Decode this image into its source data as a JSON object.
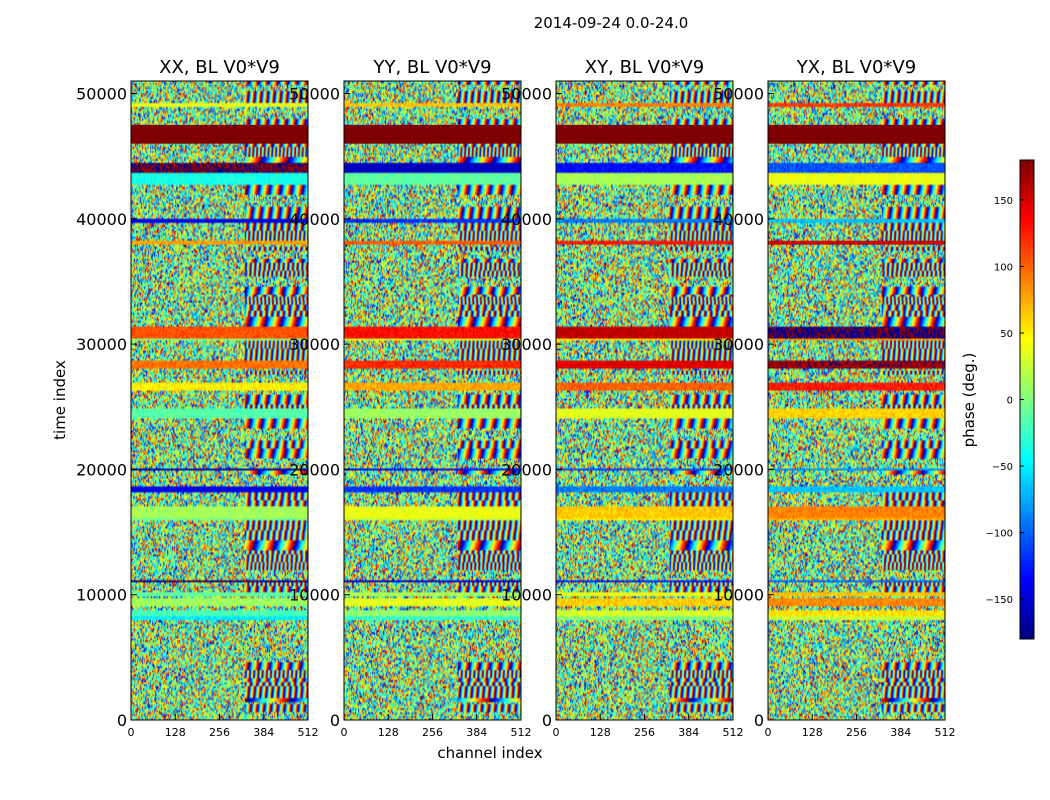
{
  "suptitle": "2014-09-24 0.0-24.0",
  "chart_data": {
    "type": "heatmap",
    "xlabel": "channel index",
    "ylabel": "time index",
    "xlim": [
      0,
      512
    ],
    "ylim": [
      0,
      51000
    ],
    "xticks": [
      "0",
      "128",
      "256",
      "384",
      "512"
    ],
    "yticks": [
      "0",
      "10000",
      "20000",
      "30000",
      "40000",
      "50000"
    ],
    "panels": [
      {
        "title": "XX, BL V0*V9",
        "key": "xx"
      },
      {
        "title": "YY, BL V0*V9",
        "key": "yy"
      },
      {
        "title": "XY, BL V0*V9",
        "key": "xy"
      },
      {
        "title": "YX, BL V0*V9",
        "key": "yx"
      }
    ],
    "colorbar": {
      "label": "phase (deg.)",
      "range": [
        -180,
        180
      ],
      "ticks": [
        "150",
        "100",
        "50",
        "0",
        "−50",
        "−100",
        "−150"
      ],
      "colormap": "jet",
      "colors": [
        "#00007f",
        "#0000ff",
        "#007fff",
        "#00ffff",
        "#7fff7f",
        "#ffff00",
        "#ff7f00",
        "#ff0000",
        "#7f0000"
      ]
    },
    "saturated_band": {
      "time_start": 46000,
      "time_end": 47500,
      "phase": 180,
      "color": "#7f0000"
    }
  }
}
